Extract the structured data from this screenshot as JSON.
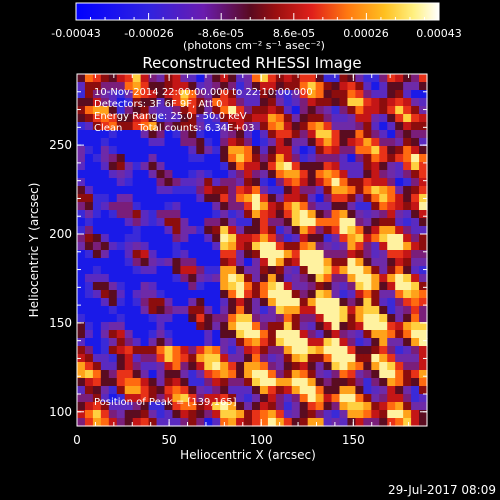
{
  "colorbar": {
    "tick_labels": [
      "-0.00043",
      "-0.00026",
      "-8.6e-05",
      "8.6e-05",
      "0.00026",
      "0.00043"
    ],
    "units": "(photons cm⁻² s⁻¹ asec⁻²)",
    "range": [
      -0.00043,
      0.00043
    ],
    "colormap": "blue-purple-red-yellow-white"
  },
  "header": {
    "title": "Reconstructed RHESSI Image"
  },
  "info": {
    "line1": "10-Nov-2014 22:00:00.000 to 22:10:00.000",
    "line2": "Detectors: 3F 6F 9F, Att 0",
    "line3": "Energy Range: 25.0 - 50.0 keV",
    "line4": "Clean     Total counts: 6.34E+03",
    "peak": "Position of Peak = [139,165]"
  },
  "footer": {
    "timestamp": "29-Jul-2017 08:09"
  },
  "chart_data": {
    "type": "heatmap",
    "title": "Reconstructed RHESSI Image",
    "xlabel": "Heliocentric X (arcsec)",
    "ylabel": "Heliocentric Y (arcsec)",
    "xlim": [
      0,
      190
    ],
    "ylim": [
      92,
      290
    ],
    "x_ticks": [
      0,
      50,
      100,
      150
    ],
    "y_ticks": [
      100,
      150,
      200,
      250
    ],
    "peak_position": [
      139,
      165
    ],
    "grid": false
  }
}
